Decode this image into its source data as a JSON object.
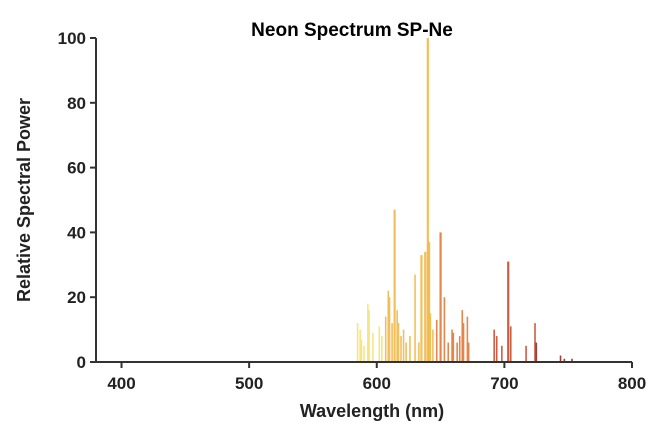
{
  "chart_data": {
    "type": "bar",
    "title": "Neon Spectrum SP-Ne",
    "xlabel": "Wavelength (nm)",
    "ylabel": "Relative Spectral Power",
    "xlim": [
      380,
      800
    ],
    "ylim": [
      0,
      100
    ],
    "xticks": [
      400,
      500,
      600,
      700,
      800
    ],
    "yticks": [
      0,
      20,
      40,
      60,
      80,
      100
    ],
    "grid": false,
    "legend": "none",
    "color_scale": [
      "#f5e27a",
      "#f0b84a",
      "#e07a38",
      "#c94a2c",
      "#8f2a22"
    ],
    "series": [
      {
        "x": [
          585,
          587,
          588,
          590,
          593,
          594,
          597,
          602,
          604,
          607,
          609,
          610,
          612,
          614,
          616,
          617,
          619,
          621,
          623,
          626,
          630,
          633,
          635,
          638,
          640,
          641,
          642,
          644,
          647,
          650,
          653,
          656,
          659,
          660,
          663,
          665,
          667,
          668,
          671,
          672,
          692,
          694,
          698,
          703,
          705,
          717,
          724,
          725,
          744,
          747,
          753
        ],
        "values": [
          12,
          10,
          7,
          5,
          18,
          16,
          9,
          11,
          8,
          14,
          22,
          20,
          12,
          47,
          16,
          12,
          8,
          10,
          6,
          8,
          27,
          6,
          33,
          34,
          100,
          37,
          15,
          10,
          13,
          40,
          20,
          6,
          10,
          9,
          6,
          8,
          16,
          12,
          14,
          6,
          10,
          8,
          5,
          31,
          11,
          5,
          12,
          6,
          2,
          1,
          1
        ]
      }
    ]
  }
}
